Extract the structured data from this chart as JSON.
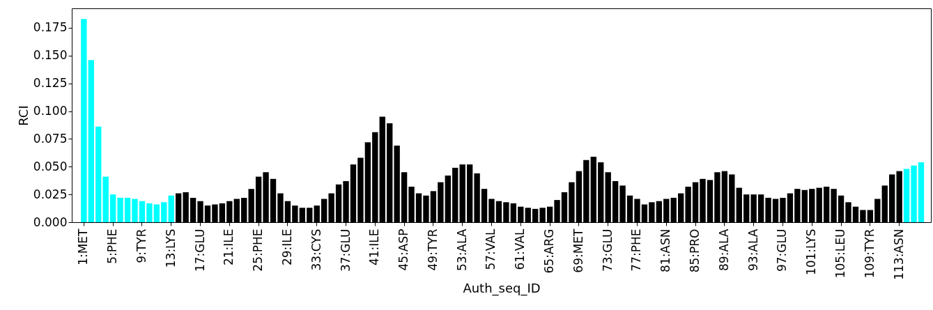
{
  "chart_data": {
    "type": "bar",
    "xlabel": "Auth_seq_ID",
    "ylabel": "RCI",
    "categories": [
      "1:MET",
      null,
      null,
      null,
      "5:PHE",
      null,
      null,
      null,
      "9:TYR",
      null,
      null,
      null,
      "13:LYS",
      null,
      null,
      null,
      "17:GLU",
      null,
      null,
      null,
      "21:ILE",
      null,
      null,
      null,
      "25:PHE",
      null,
      null,
      null,
      "29:ILE",
      null,
      null,
      null,
      "33:CYS",
      null,
      null,
      null,
      "37:GLU",
      null,
      null,
      null,
      "41:ILE",
      null,
      null,
      null,
      "45:ASP",
      null,
      null,
      null,
      "49:TYR",
      null,
      null,
      null,
      "53:ALA",
      null,
      null,
      null,
      "57:VAL",
      null,
      null,
      null,
      "61:VAL",
      null,
      null,
      null,
      "65:ARG",
      null,
      null,
      null,
      "69:MET",
      null,
      null,
      null,
      "73:GLU",
      null,
      null,
      null,
      "77:PHE",
      null,
      null,
      null,
      "81:ASN",
      null,
      null,
      null,
      "85:PRO",
      null,
      null,
      null,
      "89:ALA",
      null,
      null,
      null,
      "93:ALA",
      null,
      null,
      null,
      "97:GLU",
      null,
      null,
      null,
      "101:LYS",
      null,
      null,
      null,
      "105:LEU",
      null,
      null,
      null,
      "109:TYR",
      null,
      null,
      null,
      "113:ASN",
      null,
      null,
      null
    ],
    "values": [
      0.183,
      0.146,
      0.086,
      0.041,
      0.025,
      0.022,
      0.022,
      0.021,
      0.019,
      0.017,
      0.016,
      0.018,
      0.024,
      0.026,
      0.027,
      0.022,
      0.019,
      0.015,
      0.016,
      0.017,
      0.019,
      0.021,
      0.022,
      0.03,
      0.041,
      0.045,
      0.039,
      0.026,
      0.019,
      0.015,
      0.013,
      0.013,
      0.015,
      0.021,
      0.026,
      0.034,
      0.037,
      0.052,
      0.058,
      0.072,
      0.081,
      0.095,
      0.089,
      0.069,
      0.045,
      0.032,
      0.026,
      0.024,
      0.028,
      0.036,
      0.042,
      0.049,
      0.052,
      0.052,
      0.044,
      0.03,
      0.021,
      0.019,
      0.018,
      0.017,
      0.014,
      0.013,
      0.012,
      0.013,
      0.014,
      0.02,
      0.027,
      0.036,
      0.046,
      0.056,
      0.059,
      0.054,
      0.045,
      0.037,
      0.033,
      0.024,
      0.021,
      0.016,
      0.018,
      0.019,
      0.021,
      0.022,
      0.026,
      0.032,
      0.036,
      0.039,
      0.038,
      0.045,
      0.046,
      0.043,
      0.031,
      0.025,
      0.025,
      0.025,
      0.022,
      0.021,
      0.022,
      0.026,
      0.03,
      0.029,
      0.03,
      0.031,
      0.032,
      0.03,
      0.024,
      0.018,
      0.014,
      0.011,
      0.011,
      0.021,
      0.033,
      0.043,
      0.046,
      0.048,
      0.051,
      0.054
    ],
    "colors": [
      "#00ffff",
      "#00ffff",
      "#00ffff",
      "#00ffff",
      "#00ffff",
      "#00ffff",
      "#00ffff",
      "#00ffff",
      "#00ffff",
      "#00ffff",
      "#00ffff",
      "#00ffff",
      "#00ffff",
      "#000000",
      "#000000",
      "#000000",
      "#000000",
      "#000000",
      "#000000",
      "#000000",
      "#000000",
      "#000000",
      "#000000",
      "#000000",
      "#000000",
      "#000000",
      "#000000",
      "#000000",
      "#000000",
      "#000000",
      "#000000",
      "#000000",
      "#000000",
      "#000000",
      "#000000",
      "#000000",
      "#000000",
      "#000000",
      "#000000",
      "#000000",
      "#000000",
      "#000000",
      "#000000",
      "#000000",
      "#000000",
      "#000000",
      "#000000",
      "#000000",
      "#000000",
      "#000000",
      "#000000",
      "#000000",
      "#000000",
      "#000000",
      "#000000",
      "#000000",
      "#000000",
      "#000000",
      "#000000",
      "#000000",
      "#000000",
      "#000000",
      "#000000",
      "#000000",
      "#000000",
      "#000000",
      "#000000",
      "#000000",
      "#000000",
      "#000000",
      "#000000",
      "#000000",
      "#000000",
      "#000000",
      "#000000",
      "#000000",
      "#000000",
      "#000000",
      "#000000",
      "#000000",
      "#000000",
      "#000000",
      "#000000",
      "#000000",
      "#000000",
      "#000000",
      "#000000",
      "#000000",
      "#000000",
      "#000000",
      "#000000",
      "#000000",
      "#000000",
      "#000000",
      "#000000",
      "#000000",
      "#000000",
      "#000000",
      "#000000",
      "#000000",
      "#000000",
      "#000000",
      "#000000",
      "#000000",
      "#000000",
      "#000000",
      "#000000",
      "#000000",
      "#000000",
      "#000000",
      "#000000",
      "#000000",
      "#000000",
      "#00ffff",
      "#00ffff",
      "#00ffff"
    ],
    "ylim": [
      0,
      0.1925
    ],
    "yticks": [
      {
        "value": 0,
        "label": "0.000"
      },
      {
        "value": 0.025,
        "label": "0.025"
      },
      {
        "value": 0.05,
        "label": "0.050"
      },
      {
        "value": 0.075,
        "label": "0.075"
      },
      {
        "value": 0.1,
        "label": "0.100"
      },
      {
        "value": 0.125,
        "label": "0.125"
      },
      {
        "value": 0.15,
        "label": "0.150"
      },
      {
        "value": 0.175,
        "label": "0.175"
      }
    ],
    "grid": false
  }
}
